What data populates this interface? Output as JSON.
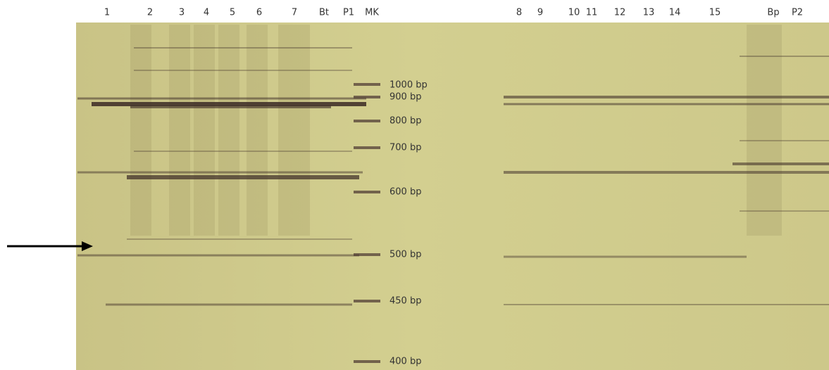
{
  "lanes": [
    "1",
    "2",
    "3",
    "4",
    "5",
    "6",
    "7",
    "Bt",
    "P1",
    "MK",
    "8",
    "9",
    "10",
    "11",
    "12",
    "13",
    "14",
    "15",
    "Bp",
    "P2"
  ],
  "markers": [
    "1000 bp",
    "900 bp",
    "800 bp",
    "700 bp",
    "600 bp",
    "500 bp",
    "450 bp",
    "400 bp"
  ]
}
